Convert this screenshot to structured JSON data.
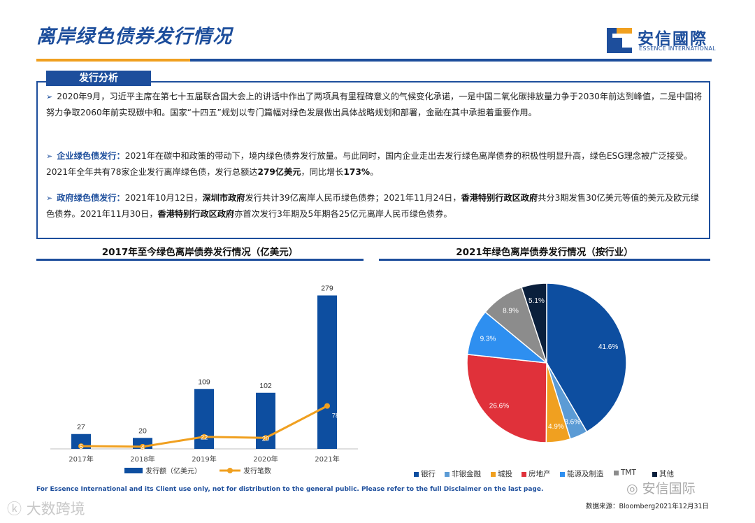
{
  "header": {
    "title": "离岸绿色债券发行情况",
    "logo_cn": "安信國際",
    "logo_en": "ESSENCE INTERNATIONAL",
    "brand_color": "#1d4e9c",
    "accent_color": "#f0a020"
  },
  "panel": {
    "tab_label": "发行分析",
    "p1": {
      "text": "2020年9月，习近平主席在第七十五届联合国大会上的讲话中作出了两项具有里程碑意义的气候变化承诺，一是中国二氧化碳排放量力争于2030年前达到峰值，二是中国将努力争取2060年前实现碳中和。国家“十四五”规划以专门篇幅对绿色发展做出具体战略规划和部署，金融在其中承担着重要作用。"
    },
    "p2": {
      "label": "企业绿色债发行：",
      "text_a": "2021年在碳中和政策的带动下，境内绿色债券发行放量。与此同时，国内企业走出去发行绿色离岸债券的积极性明显升高，绿色ESG理念被广泛接受。2021年全年共有78家企业发行离岸绿色债，发行总额达",
      "bold": "279亿美元",
      "text_b": "，同比增长",
      "bold2": "173%",
      "text_c": "。"
    },
    "p3": {
      "label": "政府绿色债发行：",
      "t1": "2021年10月12日，",
      "b1": "深圳市政府",
      "t2": "发行共计39亿离岸人民币绿色债券；2021年11月24日，",
      "b2": "香港特别行政区政府",
      "t3": "共分3期发售30亿美元等值的美元及欧元绿色债券。2021年11月30日，",
      "b3": "香港特别行政区政府",
      "t4": "亦首次发行3年期及5年期各25亿元离岸人民币绿色债券。"
    }
  },
  "chart_data": [
    {
      "type": "bar",
      "title": "2017年至今绿色离岸债券发行情况（亿美元）",
      "categories": [
        "2017年",
        "2018年",
        "2019年",
        "2020年",
        "2021年"
      ],
      "series": [
        {
          "name": "发行额（亿美元）",
          "type": "bar",
          "values": [
            27,
            20,
            109,
            102,
            279
          ],
          "color": "#0d4ea0"
        },
        {
          "name": "发行笔数",
          "type": "line",
          "values": [
            5,
            4,
            22,
            20,
            78
          ],
          "color": "#f0a020"
        }
      ],
      "ylim": [
        0,
        300
      ],
      "grid": false,
      "legend": "bottom"
    },
    {
      "type": "pie",
      "title": "2021年绿色离岸债券发行情况（按行业）",
      "slices": [
        {
          "name": "银行",
          "value": 41.6,
          "label": "41.6%",
          "color": "#0d4ea0"
        },
        {
          "name": "非银金融",
          "value": 3.6,
          "label": "3.6%",
          "color": "#5b9bd5"
        },
        {
          "name": "城投",
          "value": 4.9,
          "label": "4.9%",
          "color": "#f0a020"
        },
        {
          "name": "房地产",
          "value": 26.6,
          "label": "26.6%",
          "color": "#e0313a"
        },
        {
          "name": "能源及制造",
          "value": 9.3,
          "label": "9.3%",
          "color": "#2e8ff0"
        },
        {
          "name": "TMT",
          "value": 8.9,
          "label": "8.9%",
          "color": "#8c8c8c"
        },
        {
          "name": "其他",
          "value": 5.1,
          "label": "5.1%",
          "color": "#0a1f3c"
        }
      ],
      "legend": "bottom"
    }
  ],
  "footer": {
    "disclaimer": "For Essence International and its Client use only, not for distribution to the general public. Please refer to the full Disclaimer on the last page.",
    "source": "数据来源：Bloomberg2021年12月31日",
    "wechat": "安信国际",
    "watermark": "大数跨境"
  }
}
